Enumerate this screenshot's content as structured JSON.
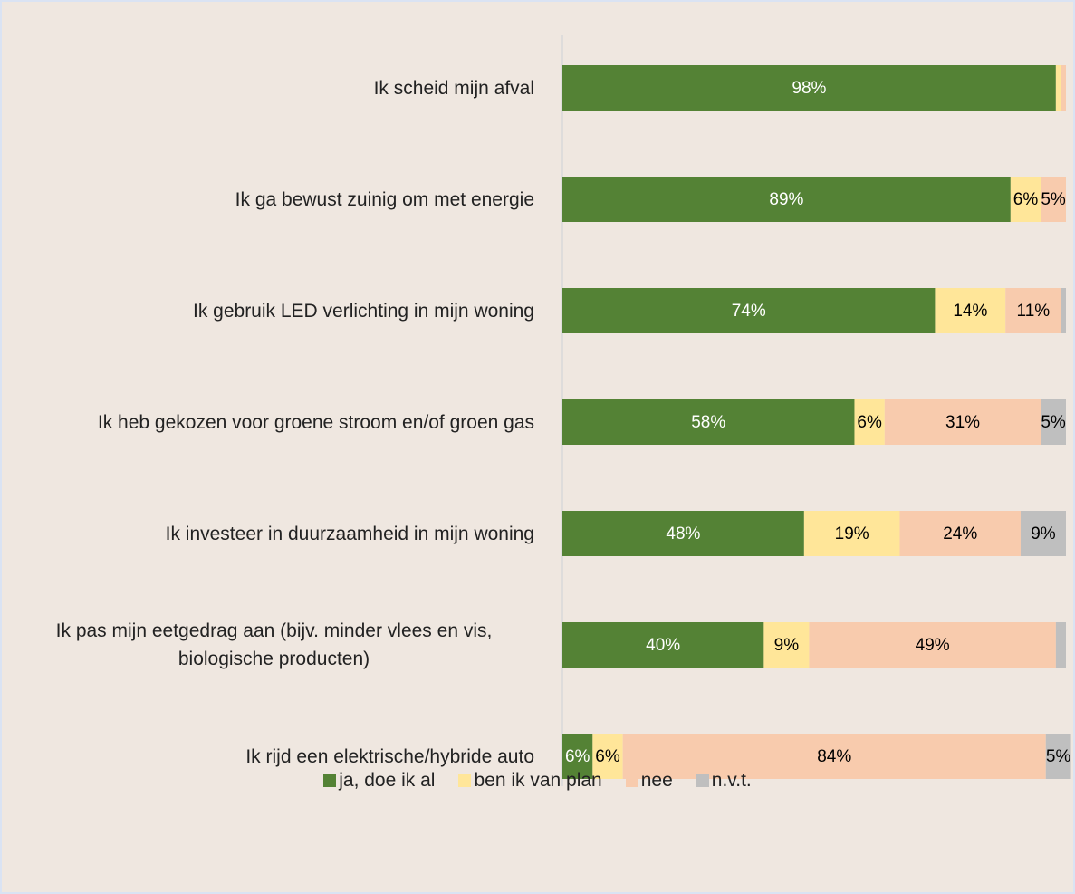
{
  "chart_data": {
    "type": "stacked_barh",
    "categories": [
      "Ik scheid mijn afval",
      "Ik ga bewust zuinig om met energie",
      "Ik gebruik LED verlichting in mijn woning",
      "Ik heb gekozen voor groene stroom en/of groen gas",
      "Ik investeer in duurzaamheid in mijn woning",
      "Ik pas mijn eetgedrag aan (bijv. minder vlees en vis, biologische producten)",
      "Ik rijd een elektrische/hybride auto"
    ],
    "series": [
      {
        "name": "ja, doe ik al",
        "color": "#548235",
        "values": [
          98,
          89,
          74,
          58,
          48,
          40,
          6
        ],
        "value_labels": [
          "98%",
          "89%",
          "74%",
          "58%",
          "48%",
          "40%",
          "6%"
        ]
      },
      {
        "name": "ben ik van plan",
        "color": "#ffe699",
        "values": [
          1,
          6,
          14,
          6,
          19,
          9,
          6
        ],
        "value_labels": [
          null,
          "6%",
          "14%",
          "6%",
          "19%",
          "9%",
          "6%"
        ]
      },
      {
        "name": "nee",
        "color": "#f8cbad",
        "values": [
          1,
          5,
          11,
          31,
          24,
          49,
          84
        ],
        "value_labels": [
          null,
          "5%",
          "11%",
          "31%",
          "24%",
          "49%",
          "84%"
        ]
      },
      {
        "name": "n.v.t.",
        "color": "#bfbfbf",
        "values": [
          0,
          0,
          1,
          5,
          9,
          2,
          5
        ],
        "value_labels": [
          null,
          null,
          null,
          "5%",
          "9%",
          null,
          "5%"
        ]
      }
    ],
    "xlim": [
      0,
      100
    ],
    "legend": "bottom"
  }
}
